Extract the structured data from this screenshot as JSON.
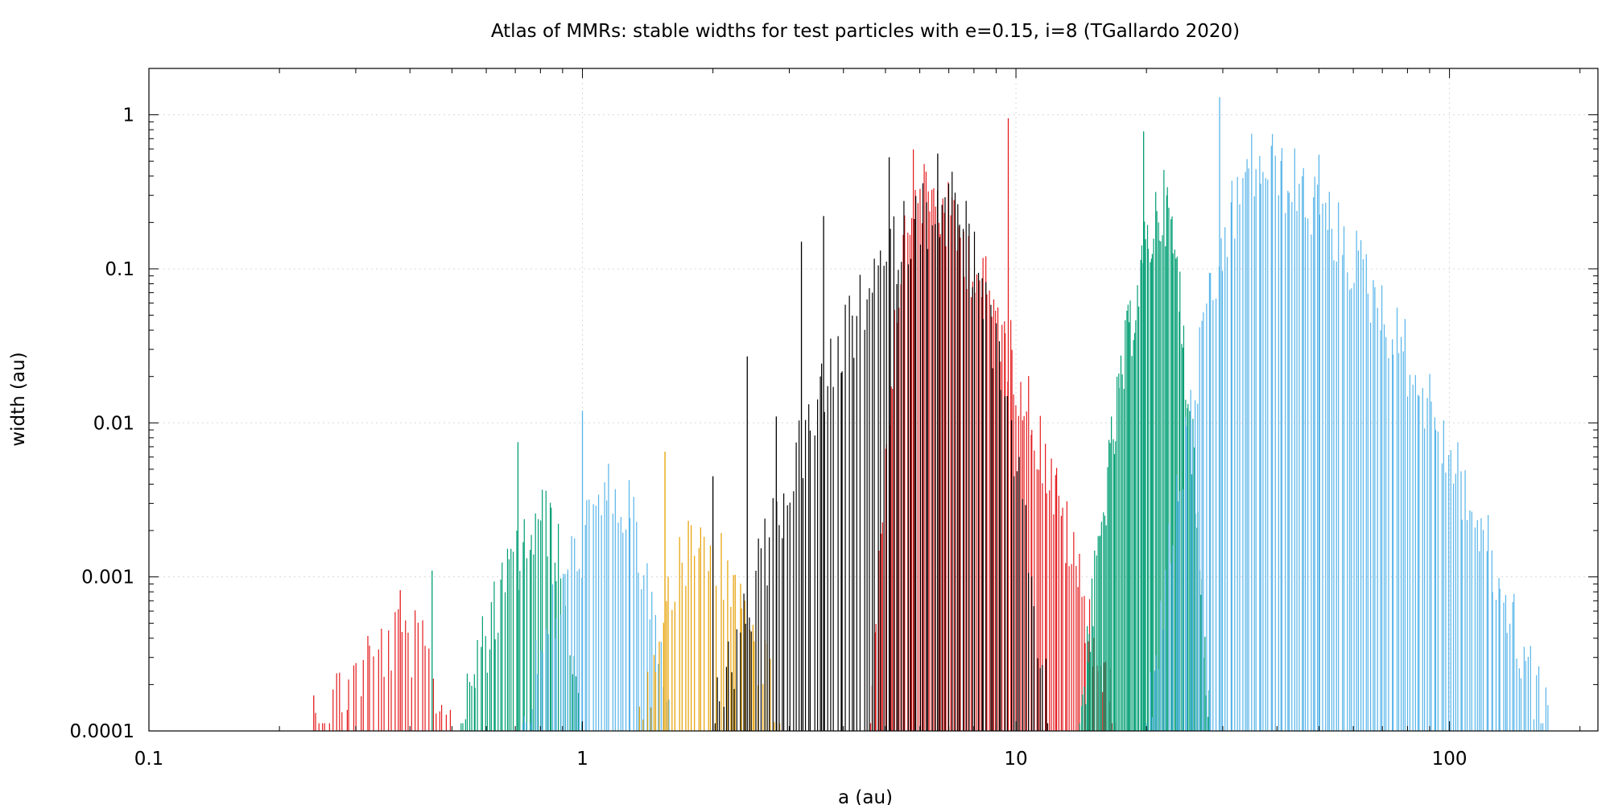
{
  "chart_data": {
    "type": "bar",
    "title": "Atlas of MMRs: stable widths for test particles with e=0.15, i=8  (TGallardo 2020)",
    "xlabel": "a (au)",
    "ylabel": "width (au)",
    "x_scale": "log",
    "y_scale": "log",
    "xlim": [
      0.1,
      220
    ],
    "ylim": [
      0.0001,
      2
    ],
    "grid": true,
    "x_ticks": [
      {
        "value": 0.1,
        "label": "0.1"
      },
      {
        "value": 1,
        "label": "1"
      },
      {
        "value": 10,
        "label": "10"
      },
      {
        "value": 100,
        "label": "100"
      }
    ],
    "y_ticks": [
      {
        "value": 0.0001,
        "label": "0.0001"
      },
      {
        "value": 0.001,
        "label": "0.001"
      },
      {
        "value": 0.01,
        "label": "0.01"
      },
      {
        "value": 0.1,
        "label": "0.1"
      },
      {
        "value": 1,
        "label": "1"
      }
    ],
    "series": [
      {
        "color": "#e41a1c",
        "groups": [
          {
            "center": 0.39,
            "x_range": [
              0.24,
              0.5
            ],
            "peak": 0.0007,
            "count": 40
          },
          {
            "center": 5.8,
            "x_range": [
              4.6,
              17.0
            ],
            "peak": 0.6,
            "count": 120
          }
        ],
        "spikes": [
          [
            9.6,
            0.95
          ],
          [
            0.38,
            0.00082
          ],
          [
            0.24,
            0.00017
          ]
        ]
      },
      {
        "color": "#009e73",
        "groups": [
          {
            "center": 0.83,
            "x_range": [
              0.52,
              1.0
            ],
            "peak": 0.004,
            "count": 55
          },
          {
            "center": 22.0,
            "x_range": [
              14.0,
              28.0
            ],
            "peak": 0.45,
            "count": 95
          }
        ],
        "spikes": [
          [
            0.71,
            0.0075
          ],
          [
            0.45,
            0.0011
          ],
          [
            19.7,
            0.78
          ]
        ]
      },
      {
        "color": "#56b4e9",
        "groups": [
          {
            "center": 1.2,
            "x_range": [
              0.72,
              1.6
            ],
            "peak": 0.006,
            "count": 55
          },
          {
            "center": 36.0,
            "x_range": [
              20.0,
              170.0
            ],
            "peak": 0.85,
            "count": 170
          }
        ],
        "spikes": [
          [
            1.0,
            0.012
          ],
          [
            29.5,
            1.3
          ],
          [
            50.0,
            0.55
          ]
        ]
      },
      {
        "color": "#e69f00",
        "groups": [
          {
            "center": 1.85,
            "x_range": [
              1.35,
              2.9
            ],
            "peak": 0.003,
            "count": 45
          }
        ],
        "spikes": [
          [
            1.55,
            0.0065
          ]
        ]
      },
      {
        "color": "#000000",
        "groups": [
          {
            "center": 7.0,
            "x_range": [
              2.0,
              12.0
            ],
            "peak": 0.5,
            "count": 115
          }
        ],
        "spikes": [
          [
            2.0,
            0.0045
          ],
          [
            2.4,
            0.027
          ],
          [
            2.8,
            0.011
          ],
          [
            3.2,
            0.15
          ],
          [
            3.6,
            0.22
          ],
          [
            5.1,
            0.53
          ],
          [
            6.6,
            0.56
          ]
        ]
      }
    ]
  }
}
